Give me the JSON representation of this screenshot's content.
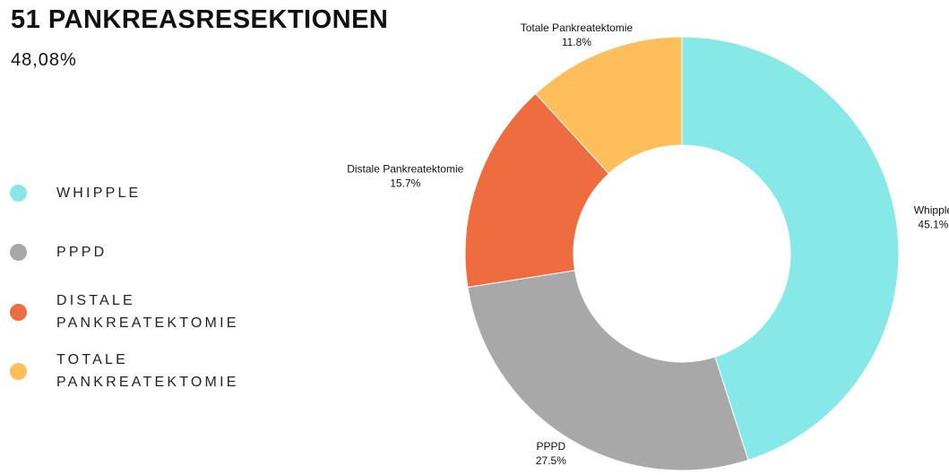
{
  "chart_data": {
    "type": "donut",
    "title": "51 PANKREASRESEKTIONEN",
    "subtitle": "48,08%",
    "categories": [
      "Whipple",
      "PPPD",
      "Distale Pankreatektomie",
      "Totale Pankreatektomie"
    ],
    "legend_labels": [
      "WHIPPLE",
      "PPPD",
      "DISTALE PANKREATEKTOMIE",
      "TOTALE PANKREATEKTOMIE"
    ],
    "values": [
      45.1,
      27.5,
      15.7,
      11.8
    ],
    "value_labels": [
      "45.1%",
      "27.5%",
      "15.7%",
      "11.8%"
    ],
    "colors": [
      "#87e8e8",
      "#a8a8a8",
      "#ee6c40",
      "#ffbe5c"
    ],
    "legend": "left"
  }
}
